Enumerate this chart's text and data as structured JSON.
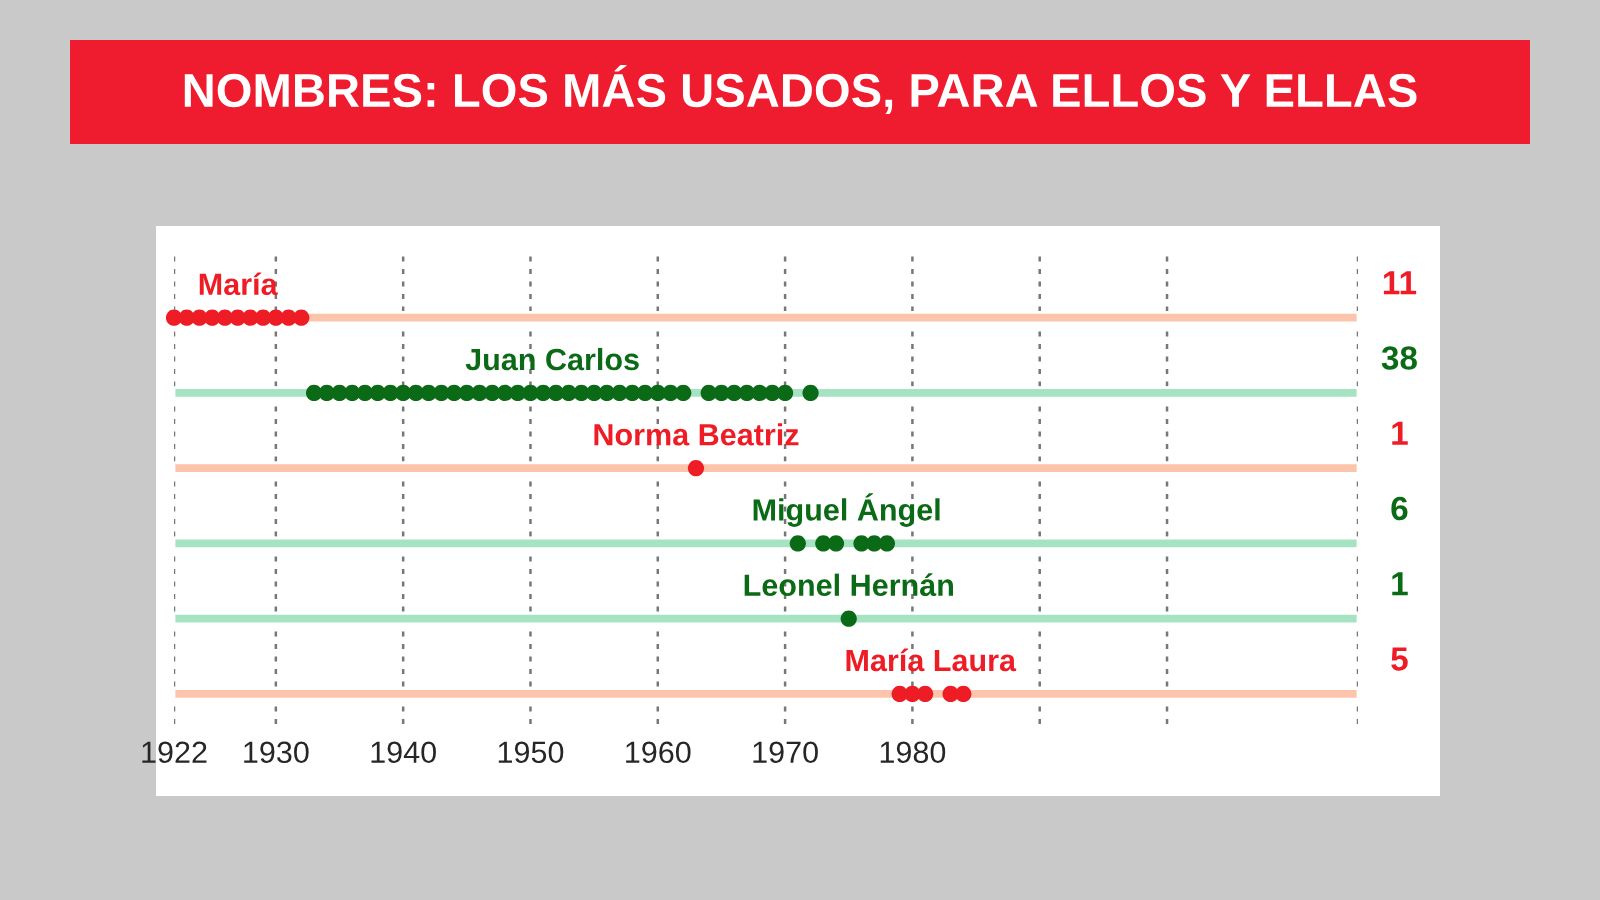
{
  "chart_data": {
    "type": "scatter",
    "title": "NOMBRES: LOS MÁS USADOS, PARA ELLOS Y ELLAS",
    "orientation": "horizontal",
    "categories": [
      "María",
      "Juan Carlos",
      "Norma Beatriz",
      "Miguel Ángel",
      "Leonel Hernán",
      "María Laura"
    ],
    "annotations": [
      "11",
      "38",
      "1",
      "6",
      "1",
      "5"
    ],
    "series": [
      {
        "type": "bar",
        "colors": [
          "#fcc4ab",
          "#a6e3c2",
          "#fcc4ab",
          "#a6e3c2",
          "#a6e3c2",
          "#fcc4ab"
        ],
        "values": [
          93,
          93,
          93,
          93,
          93,
          93
        ],
        "base": [
          1922,
          1922,
          1922,
          1922,
          1922,
          1922
        ]
      },
      {
        "color": "#ee1c25",
        "x": [
          "María",
          "María",
          "María",
          "María",
          "María",
          "María",
          "María",
          "María",
          "María",
          "María",
          "María"
        ],
        "values": [
          1922,
          1923,
          1924,
          1925,
          1926,
          1927,
          1928,
          1929,
          1930,
          1931,
          1932
        ]
      },
      {
        "color": "#0b6a16",
        "x": [
          "Juan Carlos",
          "Juan Carlos",
          "Juan Carlos",
          "Juan Carlos",
          "Juan Carlos",
          "Juan Carlos",
          "Juan Carlos",
          "Juan Carlos",
          "Juan Carlos",
          "Juan Carlos",
          "Juan Carlos",
          "Juan Carlos",
          "Juan Carlos",
          "Juan Carlos",
          "Juan Carlos",
          "Juan Carlos",
          "Juan Carlos",
          "Juan Carlos",
          "Juan Carlos",
          "Juan Carlos",
          "Juan Carlos",
          "Juan Carlos",
          "Juan Carlos",
          "Juan Carlos",
          "Juan Carlos",
          "Juan Carlos",
          "Juan Carlos",
          "Juan Carlos",
          "Juan Carlos",
          "Juan Carlos",
          "Juan Carlos",
          "Juan Carlos",
          "Juan Carlos",
          "Juan Carlos",
          "Juan Carlos",
          "Juan Carlos",
          "Juan Carlos",
          "Juan Carlos"
        ],
        "values": [
          1933,
          1934,
          1935,
          1936,
          1937,
          1938,
          1939,
          1940,
          1941,
          1942,
          1943,
          1944,
          1945,
          1946,
          1947,
          1948,
          1949,
          1950,
          1951,
          1952,
          1953,
          1954,
          1955,
          1956,
          1957,
          1958,
          1959,
          1960,
          1961,
          1962,
          1964,
          1965,
          1966,
          1967,
          1968,
          1969,
          1970,
          1972
        ]
      },
      {
        "color": "#ee1c25",
        "x": [
          "Norma Beatriz"
        ],
        "values": [
          1963
        ]
      },
      {
        "color": "#0b6a16",
        "x": [
          "Miguel Ángel",
          "Miguel Ángel",
          "Miguel Ángel",
          "Miguel Ángel",
          "Miguel Ángel",
          "Miguel Ángel"
        ],
        "values": [
          1971,
          1973,
          1974,
          1976,
          1977,
          1978
        ]
      },
      {
        "color": "#0b6a16",
        "x": [
          "Leonel Hernán"
        ],
        "values": [
          1975
        ]
      },
      {
        "color": "#ee1c25",
        "x": [
          "María Laura",
          "María Laura",
          "María Laura",
          "María Laura",
          "María Laura"
        ],
        "values": [
          1979,
          1980,
          1981,
          1983,
          1984
        ]
      }
    ],
    "xlim": [
      1922,
      2015
    ],
    "xticks": [
      1922,
      1930,
      1940,
      1950,
      1960,
      1970,
      1980,
      {
        "value": 1990,
        "label": null
      },
      {
        "value": 2000,
        "label": null
      },
      {
        "value": 2015,
        "label": null
      }
    ],
    "grid": "x",
    "tick_labels": "x",
    "marker": "circle"
  }
}
